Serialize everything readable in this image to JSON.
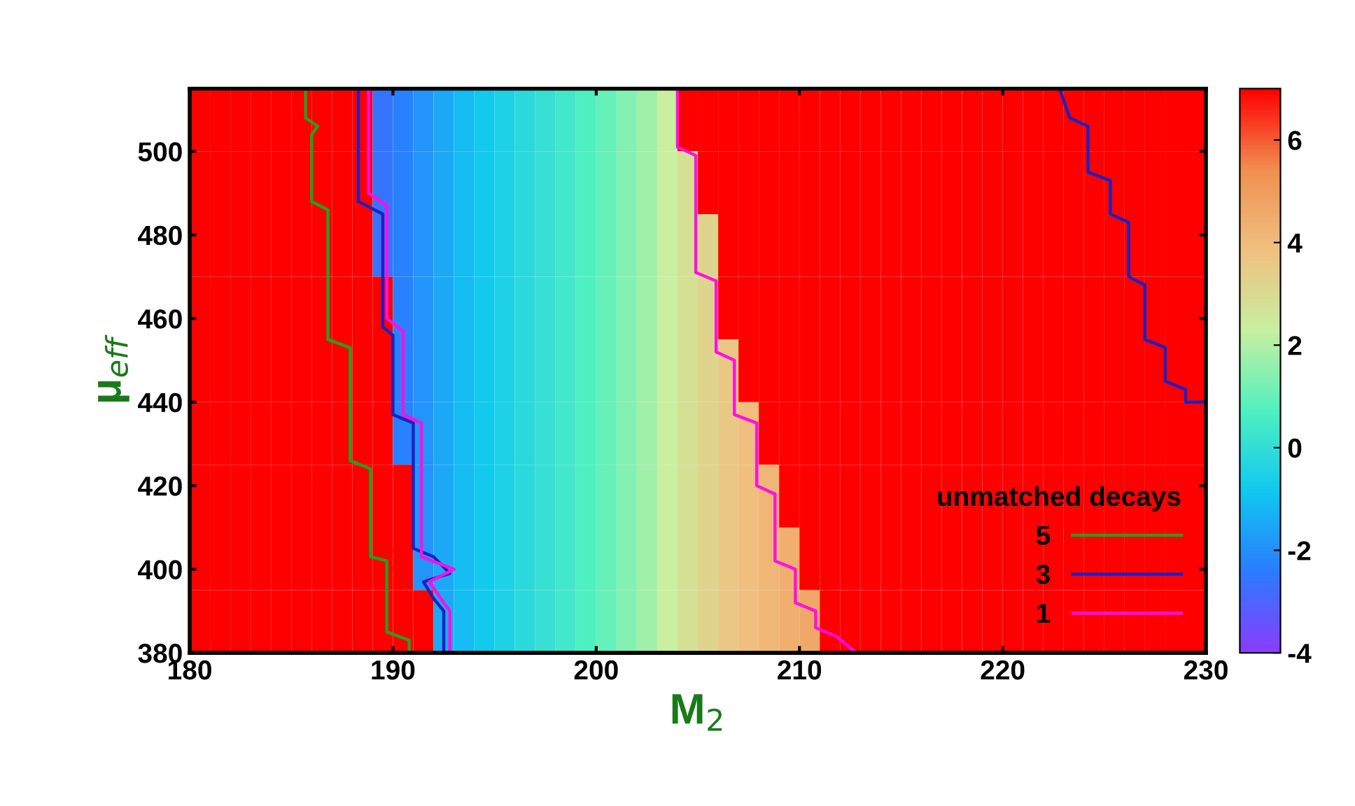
{
  "chart_data": {
    "type": "heatmap",
    "xlabel": "M$_{2}$",
    "ylabel": "μ$_{eff}$",
    "legend_title": "unmatched decays",
    "legend": "bottom right",
    "x": [
      180.5,
      181.5,
      182.5,
      183.5,
      184.5,
      185.5,
      186.5,
      187.5,
      188.5,
      189.5,
      190.5,
      191.5,
      192.5,
      193.5,
      194.5,
      195.5,
      196.5,
      197.5,
      198.5,
      199.5,
      200.5,
      201.5,
      202.5,
      203.5,
      204.5,
      205.5,
      206.5,
      207.5,
      208.5,
      209.5,
      210.5,
      211.5,
      212.5,
      213.5,
      214.5,
      215.5,
      216.5,
      217.5,
      218.5,
      219.5,
      220.5,
      221.5,
      222.5,
      223.5,
      224.5,
      225.5,
      226.5,
      227.5,
      228.5,
      229.5
    ],
    "y": [
      507.5,
      492.5,
      477.5,
      462.5,
      447.5,
      432.5,
      417.5,
      402.5,
      387.5
    ],
    "xlim": [
      180,
      230
    ],
    "ylim": [
      380,
      515
    ],
    "xticks": [
      180,
      190,
      200,
      210,
      220,
      230
    ],
    "yticks": [
      380,
      400,
      420,
      440,
      460,
      480,
      500
    ],
    "clim": [
      -4,
      7
    ],
    "cticks": [
      -4,
      -2,
      0,
      2,
      4,
      6
    ],
    "cells": [
      [
        7,
        7,
        7,
        7,
        7,
        7,
        7,
        7,
        7,
        -2.6,
        -2.3,
        -1.9,
        -1.5,
        -1.1,
        -0.8,
        -0.5,
        -0.2,
        0.1,
        0.4,
        0.7,
        1.0,
        1.4,
        1.8,
        2.3,
        7,
        7,
        7,
        7,
        7,
        7,
        7,
        7,
        7,
        7,
        7,
        7,
        7,
        7,
        7,
        7,
        7,
        7,
        7,
        7,
        7,
        7,
        7,
        7,
        7,
        7
      ],
      [
        7,
        7,
        7,
        7,
        7,
        7,
        7,
        7,
        7,
        -2.6,
        -2.3,
        -1.9,
        -1.5,
        -1.1,
        -0.8,
        -0.5,
        -0.2,
        0.1,
        0.4,
        0.7,
        1.0,
        1.4,
        1.8,
        2.3,
        2.8,
        7,
        7,
        7,
        7,
        7,
        7,
        7,
        7,
        7,
        7,
        7,
        7,
        7,
        7,
        7,
        7,
        7,
        7,
        7,
        7,
        7,
        7,
        7,
        7,
        7
      ],
      [
        7,
        7,
        7,
        7,
        7,
        7,
        7,
        7,
        7,
        -2.6,
        -2.3,
        -1.9,
        -1.5,
        -1.1,
        -0.8,
        -0.5,
        -0.2,
        0.1,
        0.4,
        0.7,
        1.0,
        1.4,
        1.8,
        2.3,
        2.8,
        3.2,
        7,
        7,
        7,
        7,
        7,
        7,
        7,
        7,
        7,
        7,
        7,
        7,
        7,
        7,
        7,
        7,
        7,
        7,
        7,
        7,
        7,
        7,
        7,
        7
      ],
      [
        7,
        7,
        7,
        7,
        7,
        7,
        7,
        7,
        7,
        7,
        -2.3,
        -1.9,
        -1.5,
        -1.1,
        -0.8,
        -0.5,
        -0.2,
        0.1,
        0.4,
        0.7,
        1.0,
        1.4,
        1.8,
        2.3,
        2.8,
        3.2,
        7,
        7,
        7,
        7,
        7,
        7,
        7,
        7,
        7,
        7,
        7,
        7,
        7,
        7,
        7,
        7,
        7,
        7,
        7,
        7,
        7,
        7,
        7,
        7
      ],
      [
        7,
        7,
        7,
        7,
        7,
        7,
        7,
        7,
        7,
        7,
        -2.3,
        -1.9,
        -1.5,
        -1.1,
        -0.8,
        -0.5,
        -0.2,
        0.1,
        0.4,
        0.7,
        1.0,
        1.4,
        1.8,
        2.3,
        2.8,
        3.2,
        3.6,
        7,
        7,
        7,
        7,
        7,
        7,
        7,
        7,
        7,
        7,
        7,
        7,
        7,
        7,
        7,
        7,
        7,
        7,
        7,
        7,
        7,
        7,
        7
      ],
      [
        7,
        7,
        7,
        7,
        7,
        7,
        7,
        7,
        7,
        7,
        -2.3,
        -1.9,
        -1.5,
        -1.1,
        -0.8,
        -0.5,
        -0.2,
        0.1,
        0.4,
        0.7,
        1.0,
        1.4,
        1.8,
        2.3,
        2.8,
        3.2,
        3.6,
        3.9,
        7,
        7,
        7,
        7,
        7,
        7,
        7,
        7,
        7,
        7,
        7,
        7,
        7,
        7,
        7,
        7,
        7,
        7,
        7,
        7,
        7,
        7
      ],
      [
        7,
        7,
        7,
        7,
        7,
        7,
        7,
        7,
        7,
        7,
        7,
        -1.9,
        -1.5,
        -1.1,
        -0.8,
        -0.5,
        -0.2,
        0.1,
        0.4,
        0.7,
        1.0,
        1.4,
        1.8,
        2.3,
        2.8,
        3.2,
        3.6,
        3.9,
        4.2,
        7,
        7,
        7,
        7,
        7,
        7,
        7,
        7,
        7,
        7,
        7,
        7,
        7,
        7,
        7,
        7,
        7,
        7,
        7,
        7,
        7
      ],
      [
        7,
        7,
        7,
        7,
        7,
        7,
        7,
        7,
        7,
        7,
        7,
        -1.9,
        -1.5,
        -1.1,
        -0.8,
        -0.5,
        -0.2,
        0.1,
        0.4,
        0.7,
        1.0,
        1.4,
        1.8,
        2.3,
        2.8,
        3.2,
        3.6,
        3.9,
        4.2,
        4.4,
        7,
        7,
        7,
        7,
        7,
        7,
        7,
        7,
        7,
        7,
        7,
        7,
        7,
        7,
        7,
        7,
        7,
        7,
        7,
        7
      ],
      [
        7,
        7,
        7,
        7,
        7,
        7,
        7,
        7,
        7,
        7,
        7,
        7,
        -1.5,
        -1.1,
        -0.8,
        -0.5,
        -0.2,
        0.1,
        0.4,
        0.7,
        1.0,
        1.4,
        1.8,
        2.3,
        2.8,
        3.2,
        3.6,
        3.9,
        4.2,
        4.4,
        4.6,
        7,
        7,
        7,
        7,
        7,
        7,
        7,
        7,
        7,
        7,
        7,
        7,
        7,
        7,
        7,
        7,
        7,
        7,
        7
      ]
    ],
    "series": [
      {
        "type": "line",
        "name": "5",
        "color": "#22a022",
        "x": [
          185.7,
          185.7,
          186.3,
          186,
          186,
          186.8,
          186.8,
          187.9,
          187.9,
          188.9,
          188.9,
          189.7,
          189.7,
          190.8,
          190.8
        ],
        "values": [
          515,
          508,
          506,
          504,
          488,
          486,
          455,
          453,
          426,
          424,
          403,
          402,
          385,
          383,
          380
        ]
      },
      {
        "type": "line",
        "name": "3",
        "color": "#2020c0",
        "x": [
          188.3,
          188.3,
          189.5,
          189.5,
          190,
          190,
          191,
          191,
          192,
          192.8,
          191.5,
          192,
          192.5,
          192.5
        ],
        "values": [
          515,
          488,
          485,
          458,
          456,
          437,
          435,
          405,
          403,
          399,
          397,
          393,
          390,
          380
        ]
      },
      {
        "type": "line",
        "color": "#2020c0",
        "x": [
          222.8,
          223.3,
          224.2,
          224.2,
          225.3,
          225.3,
          226.2,
          226.2,
          227,
          227,
          228,
          228,
          229,
          229,
          230
        ],
        "values": [
          515,
          508,
          506,
          495,
          493,
          485,
          483,
          470,
          468,
          455,
          453,
          445,
          443,
          440,
          440
        ]
      },
      {
        "type": "line",
        "name": "1",
        "color": "#ff10e0",
        "x": [
          188.8,
          188.8,
          189.7,
          189.7,
          190.5,
          190.5,
          191.4,
          191.4,
          193,
          191.8,
          192.5,
          192.8,
          192.8
        ],
        "values": [
          515,
          490,
          487,
          460,
          457,
          437,
          435,
          403,
          400,
          397,
          392,
          390,
          380
        ]
      },
      {
        "type": "line",
        "color": "#ff10e0",
        "x": [
          204,
          204,
          204.9,
          204.9,
          205.9,
          205.9,
          206.8,
          206.8,
          207.9,
          207.9,
          208.8,
          208.8,
          209.8,
          209.8,
          210.8,
          210.8,
          211.8,
          212.8
        ],
        "values": [
          515,
          501,
          499,
          471,
          469,
          452,
          450,
          437,
          435,
          420,
          418,
          402,
          400,
          392,
          390,
          386,
          384,
          380
        ]
      }
    ]
  }
}
